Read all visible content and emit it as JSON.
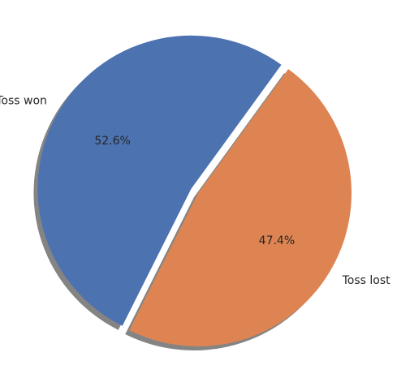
{
  "chart_data": {
    "type": "pie",
    "categories": [
      "Toss won",
      "Toss lost"
    ],
    "values": [
      52.6,
      47.4
    ],
    "percent_labels": [
      "52.6%",
      "47.4%"
    ],
    "colors": [
      "#4c72b0",
      "#dd8452"
    ],
    "exploded": [
      true,
      false
    ],
    "shadow": true,
    "title": "",
    "legend": "none"
  }
}
